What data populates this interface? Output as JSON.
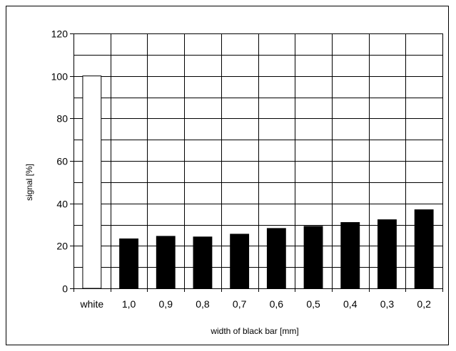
{
  "chart_data": {
    "type": "bar",
    "title": "",
    "xlabel": "width of black bar [mm]",
    "ylabel": "signal [%]",
    "categories": [
      "white",
      "1,0",
      "0,9",
      "0,8",
      "0,7",
      "0,6",
      "0,5",
      "0,4",
      "0,3",
      "0,2"
    ],
    "values": [
      100,
      23.3,
      24.5,
      24.2,
      25.5,
      28.2,
      29.2,
      31,
      32.3,
      37
    ],
    "ylim": [
      0,
      120
    ],
    "yticks": [
      0,
      20,
      40,
      60,
      80,
      100,
      120
    ],
    "grid": true,
    "colors": {
      "white_bar": "#ffffff",
      "black_bar": "#000000",
      "grid": "#000000"
    }
  }
}
